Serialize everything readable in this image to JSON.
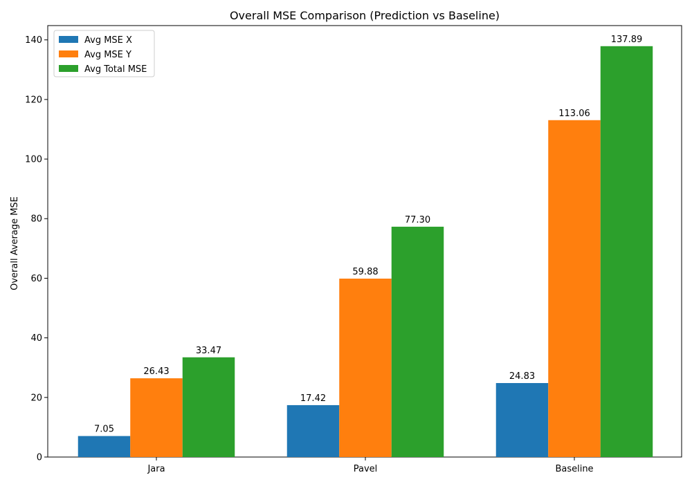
{
  "chart_data": {
    "type": "bar",
    "title": "Overall MSE Comparison (Prediction vs Baseline)",
    "xlabel": "",
    "ylabel": "Overall Average MSE",
    "categories": [
      "Jara",
      "Pavel",
      "Baseline"
    ],
    "series": [
      {
        "name": "Avg MSE X",
        "color": "#1f77b4",
        "values": [
          7.05,
          17.42,
          24.83
        ],
        "labels": [
          "7.05",
          "17.42",
          "24.83"
        ]
      },
      {
        "name": "Avg MSE Y",
        "color": "#ff7f0e",
        "values": [
          26.43,
          59.88,
          113.06
        ],
        "labels": [
          "26.43",
          "59.88",
          "113.06"
        ]
      },
      {
        "name": "Avg Total MSE",
        "color": "#2ca02c",
        "values": [
          33.47,
          77.3,
          137.89
        ],
        "labels": [
          "33.47",
          "77.30",
          "137.89"
        ]
      }
    ],
    "ylim": [
      0,
      144.8
    ],
    "yticks": [
      0,
      20,
      40,
      60,
      80,
      100,
      120,
      140
    ],
    "grid": false,
    "legend_position": "top-left"
  }
}
